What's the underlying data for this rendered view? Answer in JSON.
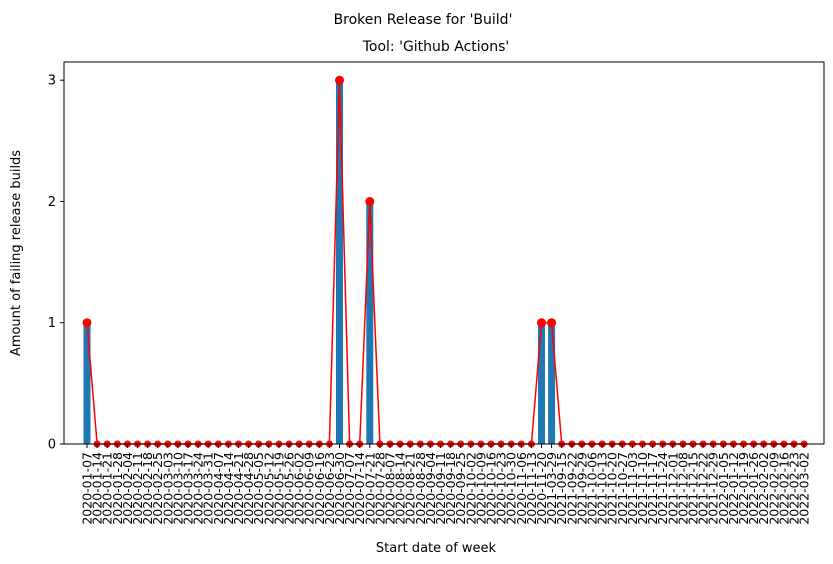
{
  "chart_data": {
    "type": "bar",
    "suptitle": "Broken Release for 'Build'",
    "title": "Tool: 'Github Actions'",
    "xlabel": "Start date of week",
    "ylabel": "Amount of failing release builds",
    "ylim": [
      0,
      3.15
    ],
    "yticks": [
      0,
      1,
      2,
      3
    ],
    "grid": false,
    "colors": {
      "bar": "#1f77b4",
      "line": "#ff0000",
      "marker": "#ff0000"
    },
    "categories": [
      "2020-01-07",
      "2020-01-14",
      "2020-01-21",
      "2020-01-28",
      "2020-02-04",
      "2020-02-11",
      "2020-02-18",
      "2020-02-25",
      "2020-03-03",
      "2020-03-10",
      "2020-03-17",
      "2020-03-24",
      "2020-03-31",
      "2020-04-07",
      "2020-04-14",
      "2020-04-21",
      "2020-04-28",
      "2020-05-05",
      "2020-05-12",
      "2020-05-19",
      "2020-05-26",
      "2020-06-02",
      "2020-06-09",
      "2020-06-16",
      "2020-06-23",
      "2020-06-30",
      "2020-07-07",
      "2020-07-14",
      "2020-07-21",
      "2020-07-28",
      "2020-08-07",
      "2020-08-14",
      "2020-08-21",
      "2020-08-28",
      "2020-09-04",
      "2020-09-11",
      "2020-09-18",
      "2020-09-25",
      "2020-10-02",
      "2020-10-09",
      "2020-10-16",
      "2020-10-23",
      "2020-10-30",
      "2020-11-06",
      "2020-11-13",
      "2020-11-20",
      "2021-03-29",
      "2021-09-15",
      "2021-09-22",
      "2021-09-29",
      "2021-10-06",
      "2021-10-13",
      "2021-10-20",
      "2021-10-27",
      "2021-11-03",
      "2021-11-10",
      "2021-11-17",
      "2021-11-24",
      "2021-12-01",
      "2021-12-08",
      "2021-12-15",
      "2021-12-22",
      "2021-12-29",
      "2022-01-05",
      "2022-01-12",
      "2022-01-19",
      "2022-01-26",
      "2022-02-02",
      "2022-02-09",
      "2022-02-16",
      "2022-02-23",
      "2022-03-02"
    ],
    "tick_labels": [
      "2020-01-07",
      "2020-01-14",
      "2020-01-21",
      "2020-01-28",
      "2020-02-04",
      "2020-02-11",
      "2020-02-18",
      "2020-02-25",
      "2020-03-03",
      "2020-03-10",
      "2020-03-17",
      "2020-03-24",
      "2020-03-31",
      "2020-04-07",
      "2020-04-14",
      "2020-04-21",
      "2020-04-28",
      "2020-05-05",
      "2020-05-12",
      "2020-05-19",
      "2020-05-26",
      "2020-06-02",
      "2020-06-09",
      "2020-06-16",
      "2020-06-23",
      "2020-06-30",
      "2020-07-07",
      "2020-07-14",
      "2020-07-21",
      "2020-07-28",
      "2020-08-07",
      "2020-08-14",
      "2020-08-21",
      "2020-08-28",
      "2020-09-04",
      "2020-09-11",
      "2020-09-18",
      "2020-09-25",
      "2020-10-02",
      "2020-10-09",
      "2020-10-16",
      "2020-10-23",
      "2020-10-30",
      "2020-11-06",
      "2020-11-13",
      "2020-11-20",
      "2021-03-29",
      "2021-09-15",
      "2021-09-22",
      "2021-09-29",
      "2021-10-06",
      "2021-10-13",
      "2021-10-20",
      "2021-10-27",
      "2021-11-03",
      "2021-11-10",
      "2021-11-17",
      "2021-11-24",
      "2021-12-01",
      "2021-12-08",
      "2021-12-15",
      "2021-12-22",
      "2021-12-29",
      "2022-01-05",
      "2022-01-12",
      "2022-01-19",
      "2022-01-26",
      "2022-02-02",
      "2022-02-09",
      "2022-02-16",
      "2022-02-23",
      "2022-03-02"
    ],
    "values": [
      1,
      0,
      0,
      0,
      0,
      0,
      0,
      0,
      0,
      0,
      0,
      0,
      0,
      0,
      0,
      0,
      0,
      0,
      0,
      0,
      0,
      0,
      0,
      0,
      0,
      3,
      0,
      0,
      2,
      0,
      0,
      0,
      0,
      0,
      0,
      0,
      0,
      0,
      0,
      0,
      0,
      0,
      0,
      0,
      0,
      1,
      1,
      0,
      0,
      0,
      0,
      0,
      0,
      0,
      0,
      0,
      0,
      0,
      0,
      0,
      0,
      0,
      0,
      0,
      0,
      0,
      0,
      0,
      0,
      0,
      0,
      0
    ]
  }
}
